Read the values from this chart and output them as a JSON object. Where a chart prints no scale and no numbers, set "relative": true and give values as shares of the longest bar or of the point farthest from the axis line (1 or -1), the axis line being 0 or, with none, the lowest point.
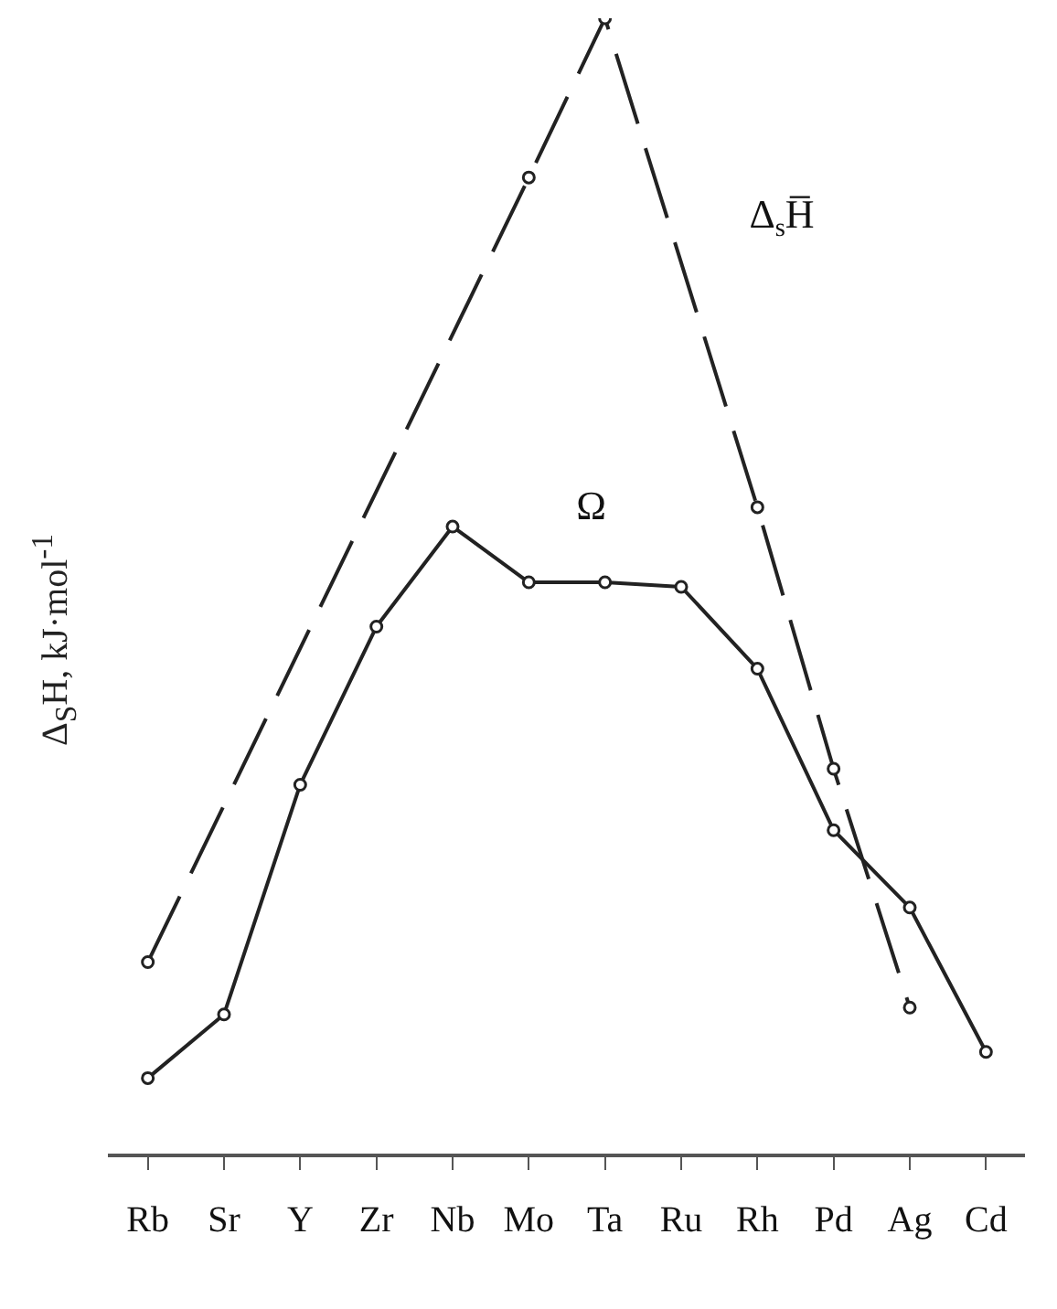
{
  "chart_data": {
    "type": "line",
    "ylabel": "Δ$_{S}$H, kJ·mol$^{-1}$",
    "relative": true,
    "categories": [
      "Rb",
      "Sr",
      "Y",
      "Zr",
      "Nb",
      "Mo",
      "Ta",
      "Ru",
      "Rh",
      "Pd",
      "Ag",
      "Cd"
    ],
    "series": [
      {
        "name": "Δ$_{s}$H̅",
        "color": "#222222",
        "line_style": "dashed",
        "values": [
          0.17,
          null,
          null,
          null,
          null,
          0.86,
          1,
          null,
          0.57,
          0.34,
          0.13,
          null
        ]
      },
      {
        "name": "Ω",
        "color": "#222222",
        "line_style": "solid",
        "values": [
          0.068,
          0.124,
          0.326,
          0.465,
          0.553,
          0.504,
          0.504,
          0.5,
          0.428,
          0.286,
          0.218,
          0.091
        ]
      }
    ],
    "marker": "circle",
    "grid": false,
    "legend": false
  }
}
